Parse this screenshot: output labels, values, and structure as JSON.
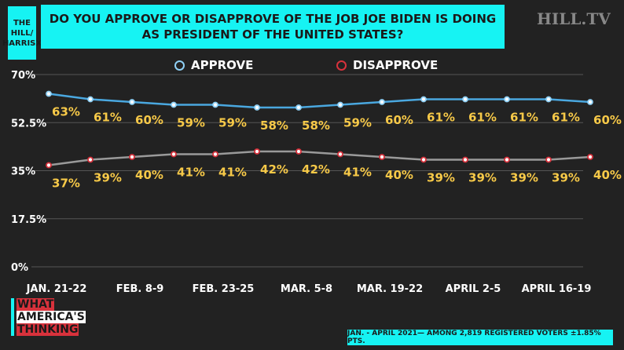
{
  "source_label": "THE HILL/ HARRISX",
  "brand": "HILL.TV",
  "footnote": "JAN. - APRIL 2021— AMONG 2,819 REGISTERED VOTERS ±1.85% PTS.",
  "logo": {
    "line1": "WHAT",
    "line2": "AMERICA'S",
    "line3": "THINKING"
  },
  "colors": {
    "approve": "#4aa8e0",
    "disapprove_line": "#9a9a9a",
    "disapprove_marker": "#d8323c",
    "label": "#f7c948",
    "accent": "#16f3f3"
  },
  "chart_data": {
    "type": "line",
    "title": "DO YOU APPROVE OR DISAPPROVE OF THE JOB JOE BIDEN IS DOING AS PRESIDENT OF THE UNITED STATES?",
    "ylim": [
      0,
      70
    ],
    "yticks": [
      "0%",
      "17.5%",
      "35%",
      "52.5%",
      "70%"
    ],
    "ytick_values": [
      0,
      17.5,
      35,
      52.5,
      70
    ],
    "xtick_labels": [
      "JAN. 21-22",
      "FEB. 8-9",
      "FEB. 23-25",
      "MAR. 5-8",
      "MAR. 19-22",
      "APRIL 2-5",
      "APRIL 16-19"
    ],
    "xtick_indices": [
      0,
      2,
      4,
      6,
      8,
      10,
      12
    ],
    "legend": "top",
    "grid": true,
    "series": [
      {
        "name": "APPROVE",
        "values": [
          63,
          61,
          60,
          59,
          59,
          58,
          58,
          59,
          60,
          61,
          61,
          61,
          61,
          60
        ]
      },
      {
        "name": "DISAPPROVE",
        "values": [
          37,
          39,
          40,
          41,
          41,
          42,
          42,
          41,
          40,
          39,
          39,
          39,
          39,
          40
        ]
      }
    ]
  }
}
